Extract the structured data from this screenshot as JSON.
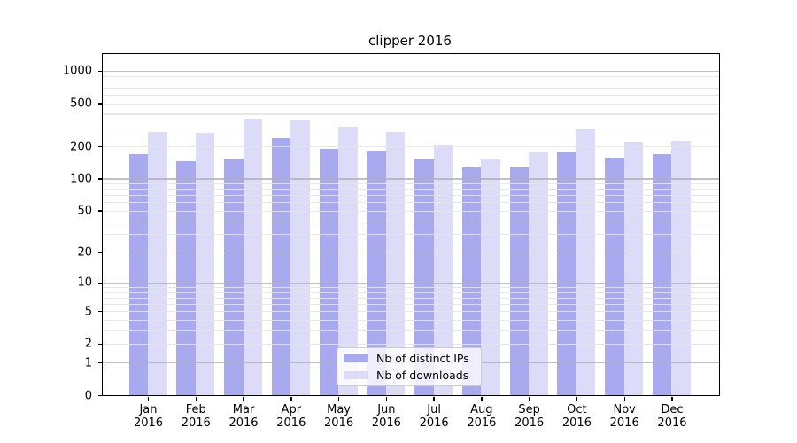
{
  "title": "clipper 2016",
  "colors": {
    "distinct_ips": "#a9a9f0",
    "downloads": "#dcdcf8",
    "grid_major": "#b0b0b0",
    "grid_minor": "#e4e4e4",
    "axis": "#000000",
    "legend_border": "#cccccc"
  },
  "legend": {
    "items": [
      {
        "label": "Nb of distinct IPs",
        "swatch": "distinct-ips-swatch"
      },
      {
        "label": "Nb of downloads",
        "swatch": "downloads-swatch"
      }
    ]
  },
  "y_axis": {
    "tick_labels": [
      "0",
      "1",
      "2",
      "5",
      "10",
      "20",
      "50",
      "100",
      "200",
      "500",
      "1000"
    ]
  },
  "chart_data": {
    "type": "bar",
    "title": "clipper 2016",
    "xlabel": "",
    "ylabel": "",
    "scale": "symlog (log10 of 1+value), linear at 0",
    "grid": true,
    "legend_position": "lower center",
    "categories": [
      "Jan 2016",
      "Feb 2016",
      "Mar 2016",
      "Apr 2016",
      "May 2016",
      "Jun 2016",
      "Jul 2016",
      "Aug 2016",
      "Sep 2016",
      "Oct 2016",
      "Nov 2016",
      "Dec 2016"
    ],
    "yticks": [
      0,
      1,
      2,
      5,
      10,
      20,
      50,
      100,
      200,
      500,
      1000
    ],
    "ylim": [
      0,
      1430
    ],
    "series": [
      {
        "name": "Nb of distinct IPs",
        "color": "#a9a9f0",
        "values": [
          168,
          146,
          151,
          236,
          190,
          181,
          151,
          127,
          128,
          174,
          157,
          168
        ]
      },
      {
        "name": "Nb of downloads",
        "color": "#dcdcf8",
        "values": [
          272,
          264,
          362,
          353,
          304,
          271,
          203,
          153,
          174,
          288,
          219,
          224
        ]
      }
    ]
  }
}
